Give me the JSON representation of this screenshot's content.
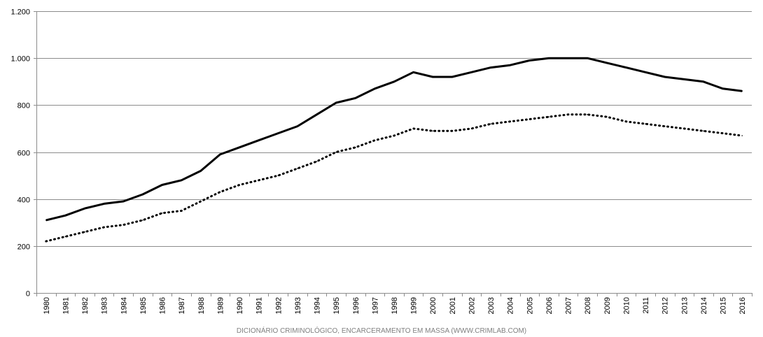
{
  "chart_data": {
    "type": "line",
    "title": "",
    "xlabel": "",
    "ylabel": "",
    "footer": "DICIONÁRIO CRIMINOLÓGICO, ENCARCERAMENTO EM MASSA (WWW.CRIMLAB.COM)",
    "ylim": [
      0,
      1200
    ],
    "yticks": [
      0,
      200,
      400,
      600,
      800,
      1000,
      1200
    ],
    "ytick_labels": [
      "0",
      "200",
      "400",
      "600",
      "800",
      "1.000",
      "1.200"
    ],
    "grid": true,
    "legend": "none",
    "categories": [
      "1980",
      "1981",
      "1982",
      "1983",
      "1984",
      "1985",
      "1986",
      "1987",
      "1988",
      "1989",
      "1990",
      "1991",
      "1992",
      "1993",
      "1994",
      "1995",
      "1996",
      "1997",
      "1998",
      "1999",
      "2000",
      "2001",
      "2002",
      "2003",
      "2004",
      "2005",
      "2006",
      "2007",
      "2008",
      "2009",
      "2010",
      "2011",
      "2012",
      "2013",
      "2014",
      "2015",
      "2016"
    ],
    "series": [
      {
        "style": "solid",
        "color": "#000000",
        "values": [
          310,
          330,
          360,
          380,
          390,
          420,
          460,
          480,
          520,
          590,
          620,
          650,
          680,
          710,
          760,
          810,
          830,
          870,
          900,
          940,
          920,
          920,
          940,
          960,
          970,
          990,
          1000,
          1000,
          1000,
          980,
          960,
          940,
          920,
          910,
          900,
          870,
          860
        ]
      },
      {
        "style": "dotted",
        "color": "#000000",
        "values": [
          220,
          240,
          260,
          280,
          290,
          310,
          340,
          350,
          390,
          430,
          460,
          480,
          500,
          530,
          560,
          600,
          620,
          650,
          670,
          700,
          690,
          690,
          700,
          720,
          730,
          740,
          750,
          760,
          760,
          750,
          730,
          720,
          710,
          700,
          690,
          680,
          670
        ]
      }
    ]
  }
}
